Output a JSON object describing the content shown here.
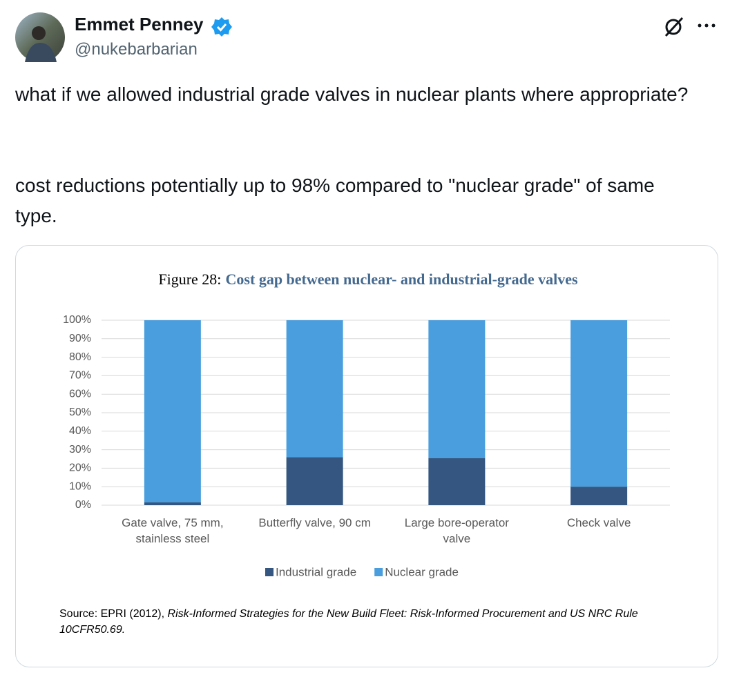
{
  "tweet": {
    "name": "Emmet Penney",
    "handle": "@nukebarbarian",
    "text": [
      "what if we allowed industrial grade valves in nuclear plants where appropriate?",
      "cost reductions potentially up to 98% compared to \"nuclear grade\" of same type."
    ]
  },
  "chart_data": {
    "type": "stacked_bar",
    "figure_label": "Figure 28:",
    "title": "Cost gap between nuclear- and industrial-grade valves",
    "categories": [
      "Gate valve, 75 mm, stainless steel",
      "Butterfly valve, 90 cm",
      "Large bore-operator valve",
      "Check valve"
    ],
    "series": [
      {
        "name": "Industrial grade",
        "color": "#345680",
        "values": [
          1.5,
          26,
          25.5,
          10
        ]
      },
      {
        "name": "Nuclear grade",
        "color": "#4a9ede",
        "values": [
          98.5,
          74,
          74.5,
          90
        ]
      }
    ],
    "ylim": [
      0,
      100
    ],
    "yticks": [
      {
        "value": 0,
        "label": "0%"
      },
      {
        "value": 10,
        "label": "10%"
      },
      {
        "value": 20,
        "label": "20%"
      },
      {
        "value": 30,
        "label": "30%"
      },
      {
        "value": 40,
        "label": "40%"
      },
      {
        "value": 50,
        "label": "50%"
      },
      {
        "value": 60,
        "label": "60%"
      },
      {
        "value": 70,
        "label": "70%"
      },
      {
        "value": 80,
        "label": "80%"
      },
      {
        "value": 90,
        "label": "90%"
      },
      {
        "value": 100,
        "label": "100%"
      }
    ],
    "grid": true,
    "legend": "bottom",
    "source_label": "Source: EPRI (2012),",
    "source_title": "Risk-Informed Strategies for the New Build Fleet: Risk-Informed Procurement and US NRC Rule 10CFR50.69."
  }
}
